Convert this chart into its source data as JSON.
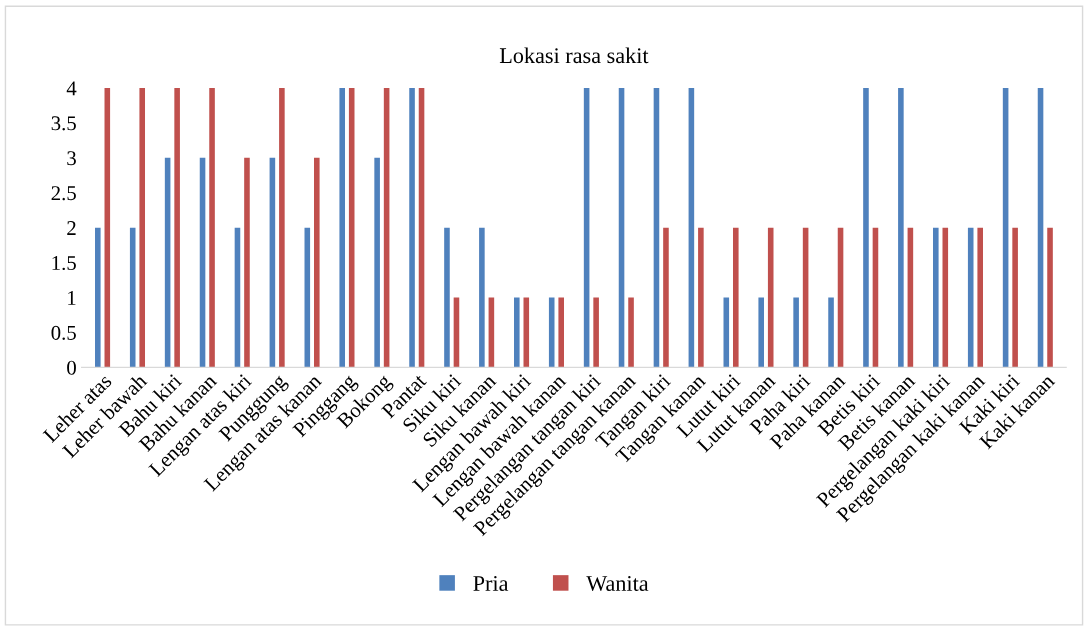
{
  "chart_data": {
    "type": "bar",
    "title": "Lokasi rasa sakit",
    "categories": [
      "Leher atas",
      "Leher bawah",
      "Bahu kiri",
      "Bahu kanan",
      "Lengan atas kiri",
      "Punggung",
      "Lengan atas kanan",
      "Pinggang",
      "Bokong",
      "Pantat",
      "Siku kiri",
      "Siku kanan",
      "Lengan bawah kiri",
      "Lengan bawah kanan",
      "Pergelangan tangan kiri",
      "Pergelangan tangan kanan",
      "Tangan kiri",
      "Tangan kanan",
      "Lutut kiri",
      "Lutut kanan",
      "Paha kiri",
      "Paha kanan",
      "Betis kiri",
      "Betis kanan",
      "Pergelangan kaki kiri",
      "Pergelangan kaki kanan",
      "Kaki kiri",
      "Kaki kanan"
    ],
    "series": [
      {
        "name": "Pria",
        "color": "#4f81bd",
        "values": [
          2,
          2,
          3,
          3,
          2,
          3,
          2,
          4,
          3,
          4,
          2,
          2,
          1,
          1,
          4,
          4,
          4,
          4,
          1,
          1,
          1,
          1,
          4,
          4,
          2,
          2,
          4,
          4
        ]
      },
      {
        "name": "Wanita",
        "color": "#c0504d",
        "values": [
          4,
          4,
          4,
          4,
          3,
          4,
          3,
          4,
          4,
          4,
          1,
          1,
          1,
          1,
          1,
          1,
          2,
          2,
          2,
          2,
          2,
          2,
          2,
          2,
          2,
          2,
          2,
          2
        ]
      }
    ],
    "ylim": [
      0,
      4
    ],
    "yticks": [
      0,
      0.5,
      1,
      1.5,
      2,
      2.5,
      3,
      3.5,
      4
    ],
    "grid": false,
    "legend": "bottom"
  }
}
